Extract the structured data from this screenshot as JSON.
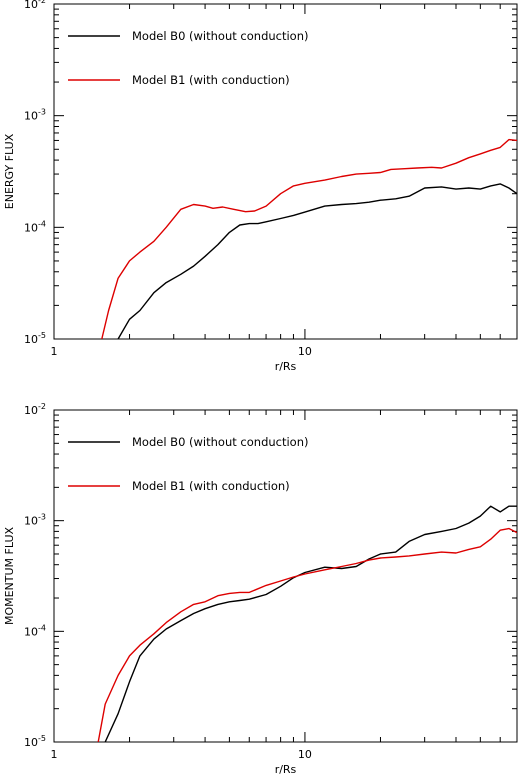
{
  "chart_data": [
    {
      "type": "line",
      "x_scale": "log",
      "y_scale": "log",
      "xlim": [
        1,
        70
      ],
      "ylim": [
        1e-05,
        0.01
      ],
      "xlabel": "r/Rs",
      "ylabel": "ENERGY FLUX",
      "x_ticks": [
        {
          "value": 1,
          "label": "1"
        },
        {
          "value": 10,
          "label": "10"
        }
      ],
      "y_ticks": [
        {
          "value": 1e-05,
          "base": "10",
          "exp": "-5"
        },
        {
          "value": 0.0001,
          "base": "10",
          "exp": "-4"
        },
        {
          "value": 0.001,
          "base": "10",
          "exp": "-3"
        },
        {
          "value": 0.01,
          "base": "10",
          "exp": "-2"
        }
      ],
      "legend_position": "top-left",
      "series": [
        {
          "name": "Model B0 (without conduction)",
          "color": "#000000",
          "x": [
            1.8,
            2.0,
            2.2,
            2.5,
            2.8,
            3.2,
            3.6,
            4.0,
            4.5,
            5.0,
            5.5,
            6.0,
            6.5,
            7.0,
            8.0,
            9.0,
            10.0,
            12.0,
            14.0,
            16.0,
            18.0,
            20.0,
            23.0,
            26.0,
            30.0,
            35.0,
            40.0,
            45.0,
            50.0,
            55.0,
            60.0,
            65.0,
            70.0
          ],
          "y": [
            1e-05,
            1.5e-05,
            1.8e-05,
            2.6e-05,
            3.2e-05,
            3.8e-05,
            4.5e-05,
            5.5e-05,
            7e-05,
            9e-05,
            0.000105,
            0.000108,
            0.000108,
            0.000112,
            0.00012,
            0.000128,
            0.000137,
            0.000155,
            0.00016,
            0.000163,
            0.000168,
            0.000175,
            0.00018,
            0.00019,
            0.000225,
            0.00023,
            0.00022,
            0.000225,
            0.00022,
            0.000235,
            0.000245,
            0.000225,
            0.0002
          ]
        },
        {
          "name": "Model B1 (with conduction)",
          "color": "#dd0000",
          "x": [
            1.55,
            1.65,
            1.8,
            2.0,
            2.2,
            2.5,
            2.8,
            3.2,
            3.6,
            4.0,
            4.3,
            4.7,
            5.2,
            5.8,
            6.3,
            7.0,
            8.0,
            9.0,
            10.0,
            12.0,
            14.0,
            16.0,
            18.0,
            20.0,
            22.0,
            25.0,
            28.0,
            32.0,
            35.0,
            40.0,
            45.0,
            50.0,
            55.0,
            60.0,
            65.0,
            70.0
          ],
          "y": [
            1e-05,
            1.8e-05,
            3.5e-05,
            5e-05,
            6e-05,
            7.5e-05,
            0.0001,
            0.000145,
            0.00016,
            0.000155,
            0.000148,
            0.000152,
            0.000145,
            0.000138,
            0.00014,
            0.000155,
            0.0002,
            0.000235,
            0.000248,
            0.000265,
            0.000285,
            0.0003,
            0.000305,
            0.00031,
            0.00033,
            0.000335,
            0.00034,
            0.000345,
            0.00034,
            0.000375,
            0.00042,
            0.000455,
            0.00049,
            0.00052,
            0.00061,
            0.0006
          ]
        }
      ]
    },
    {
      "type": "line",
      "x_scale": "log",
      "y_scale": "log",
      "xlim": [
        1,
        70
      ],
      "ylim": [
        1e-05,
        0.01
      ],
      "xlabel": "r/Rs",
      "ylabel": "MOMENTUM FLUX",
      "x_ticks": [
        {
          "value": 1,
          "label": "1"
        },
        {
          "value": 10,
          "label": "10"
        }
      ],
      "y_ticks": [
        {
          "value": 1e-05,
          "base": "10",
          "exp": "-5"
        },
        {
          "value": 0.0001,
          "base": "10",
          "exp": "-4"
        },
        {
          "value": 0.001,
          "base": "10",
          "exp": "-3"
        },
        {
          "value": 0.01,
          "base": "10",
          "exp": "-2"
        }
      ],
      "legend_position": "top-left",
      "series": [
        {
          "name": "Model B0 (without conduction)",
          "color": "#000000",
          "x": [
            1.6,
            1.8,
            2.0,
            2.2,
            2.5,
            2.8,
            3.2,
            3.6,
            4.0,
            4.5,
            5.0,
            5.5,
            6.0,
            7.0,
            8.0,
            9.0,
            10.0,
            12.0,
            14.0,
            16.0,
            18.0,
            20.0,
            23.0,
            26.0,
            30.0,
            35.0,
            40.0,
            45.0,
            50.0,
            55.0,
            60.0,
            65.0,
            70.0
          ],
          "y": [
            1e-05,
            1.8e-05,
            3.5e-05,
            6e-05,
            8.5e-05,
            0.000105,
            0.000125,
            0.000145,
            0.00016,
            0.000175,
            0.000185,
            0.00019,
            0.000195,
            0.000215,
            0.000255,
            0.000305,
            0.00034,
            0.00038,
            0.00037,
            0.000385,
            0.00045,
            0.0005,
            0.00052,
            0.00065,
            0.00075,
            0.0008,
            0.00085,
            0.00095,
            0.0011,
            0.00135,
            0.0012,
            0.00135,
            0.00135
          ]
        },
        {
          "name": "Model B1 (with conduction)",
          "color": "#dd0000",
          "x": [
            1.5,
            1.6,
            1.8,
            2.0,
            2.2,
            2.5,
            2.8,
            3.2,
            3.6,
            4.0,
            4.5,
            5.0,
            5.5,
            6.0,
            7.0,
            8.0,
            9.0,
            10.0,
            12.0,
            14.0,
            16.0,
            18.0,
            20.0,
            23.0,
            26.0,
            30.0,
            35.0,
            40.0,
            45.0,
            50.0,
            55.0,
            60.0,
            65.0,
            70.0
          ],
          "y": [
            1e-05,
            2.2e-05,
            4e-05,
            6e-05,
            7.5e-05,
            9.5e-05,
            0.00012,
            0.00015,
            0.000175,
            0.000185,
            0.00021,
            0.00022,
            0.000225,
            0.000225,
            0.00026,
            0.000285,
            0.00031,
            0.00033,
            0.00036,
            0.000385,
            0.00041,
            0.00044,
            0.00046,
            0.00047,
            0.00048,
            0.0005,
            0.00052,
            0.00051,
            0.00055,
            0.00058,
            0.00068,
            0.00082,
            0.00085,
            0.00078
          ]
        }
      ]
    }
  ]
}
